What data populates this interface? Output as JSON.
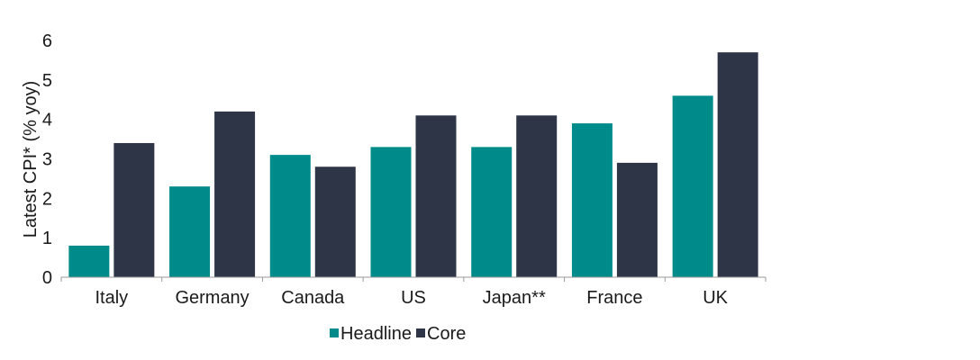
{
  "chart_data": {
    "type": "bar",
    "title": "",
    "xlabel": "",
    "ylabel": "Latest CPI* (% yoy)",
    "ylim": [
      0,
      6
    ],
    "yticks": [
      "0",
      "1",
      "2",
      "3",
      "4",
      "5",
      "6"
    ],
    "grid": false,
    "legend_position": "bottom",
    "categories": [
      "Italy",
      "Germany",
      "Canada",
      "US",
      "Japan**",
      "France",
      "UK"
    ],
    "series": [
      {
        "name": "Headline",
        "color": "#008b8b",
        "values": [
          0.8,
          2.3,
          3.1,
          3.3,
          3.3,
          3.9,
          4.6
        ]
      },
      {
        "name": "Core",
        "color": "#2e3546",
        "values": [
          3.4,
          4.2,
          2.8,
          4.1,
          4.1,
          2.9,
          5.7
        ]
      }
    ]
  }
}
